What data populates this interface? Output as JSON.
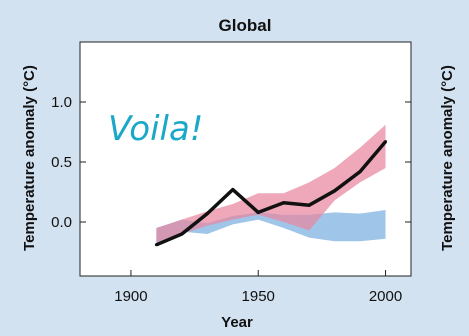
{
  "chart_data": {
    "type": "line",
    "title": "Global",
    "xlabel": "Year",
    "ylabel": "Temperature anomaly (°C)",
    "ylabel_right": "Temperature anomaly (°C)",
    "annotation": "Voila!",
    "xlim": [
      1880,
      2010
    ],
    "ylim": [
      -0.45,
      1.5
    ],
    "xticks": [
      1900,
      1950,
      2000
    ],
    "yticks": [
      0.0,
      0.5,
      1.0
    ],
    "ytick_labels": [
      "0.0",
      "0.5",
      "1.0"
    ],
    "grid": false,
    "colors": {
      "observed": "#111111",
      "natural_band": "#7aaee0",
      "combined_band": "#e8879f"
    },
    "series": [
      {
        "kind": "line",
        "x": [
          1910,
          1920,
          1930,
          1940,
          1950,
          1960,
          1970,
          1980,
          1990,
          2000
        ],
        "values": [
          -0.19,
          -0.1,
          0.07,
          0.27,
          0.08,
          0.16,
          0.14,
          0.26,
          0.42,
          0.67
        ]
      },
      {
        "kind": "band",
        "x": [
          1910,
          1920,
          1930,
          1940,
          1950,
          1960,
          1970,
          1980,
          1990,
          2000
        ],
        "upper": [
          -0.05,
          0.02,
          -0.01,
          0.05,
          0.08,
          0.06,
          0.06,
          0.08,
          0.07,
          0.1
        ],
        "lower": [
          -0.18,
          -0.08,
          -0.1,
          -0.02,
          0.02,
          -0.05,
          -0.13,
          -0.16,
          -0.16,
          -0.14
        ]
      },
      {
        "kind": "band",
        "x": [
          1910,
          1920,
          1930,
          1940,
          1950,
          1960,
          1970,
          1980,
          1990,
          2000
        ],
        "upper": [
          -0.05,
          0.02,
          0.09,
          0.15,
          0.24,
          0.24,
          0.33,
          0.45,
          0.62,
          0.81
        ],
        "lower": [
          -0.17,
          -0.1,
          -0.03,
          0.02,
          0.06,
          0.0,
          -0.07,
          0.18,
          0.33,
          0.45
        ]
      }
    ]
  }
}
